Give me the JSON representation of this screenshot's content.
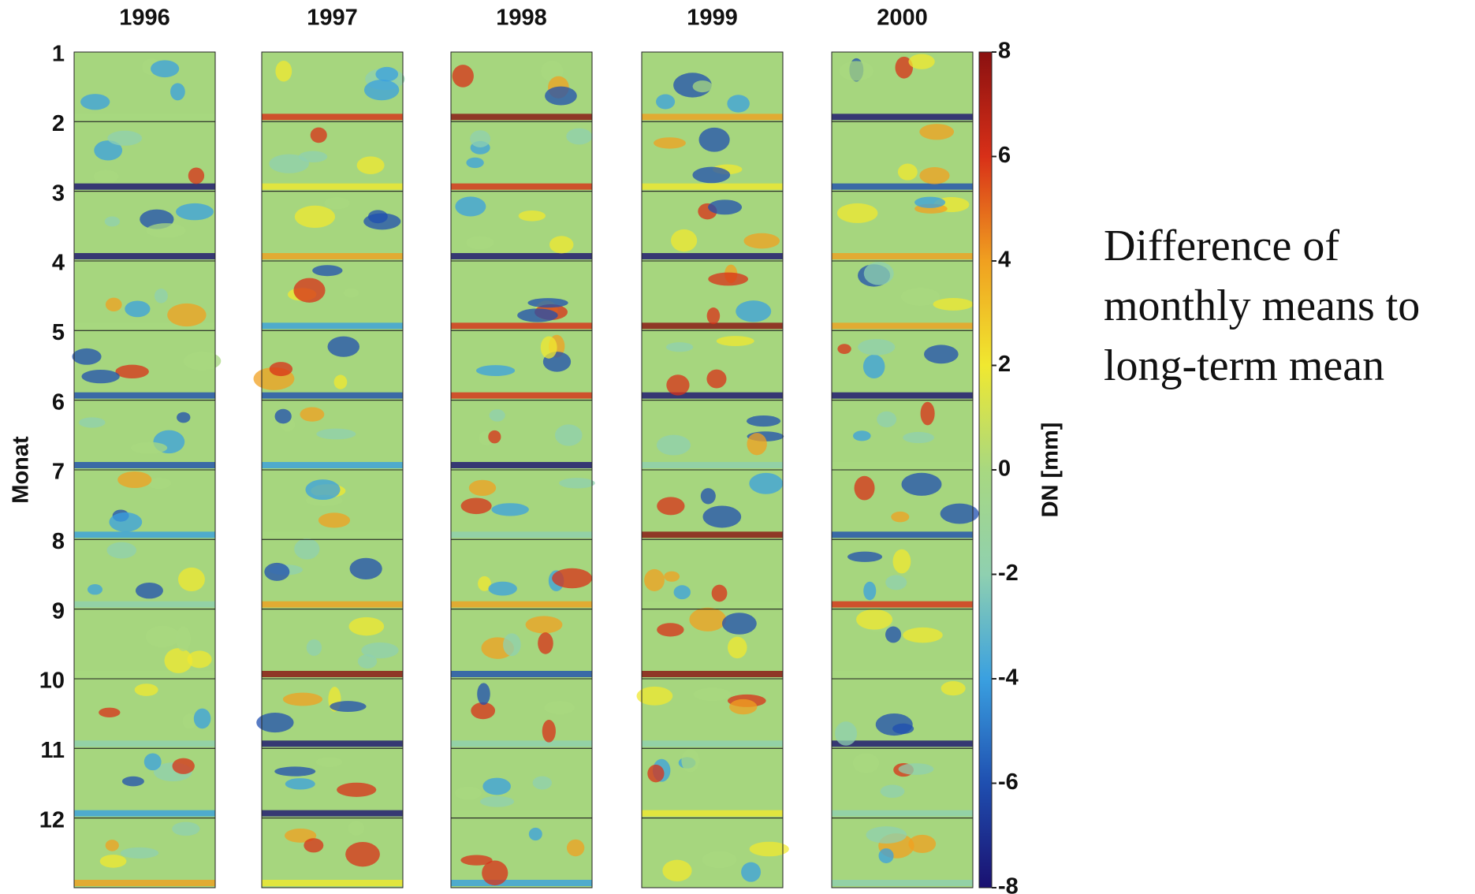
{
  "chart_data": {
    "type": "map-grid",
    "columns": [
      "1996",
      "1997",
      "1998",
      "1999",
      "2000"
    ],
    "rows": [
      "1",
      "2",
      "3",
      "4",
      "5",
      "6",
      "7",
      "8",
      "9",
      "10",
      "11",
      "12"
    ],
    "ylabel": "Monat",
    "colorbar": {
      "label": "DN [mm]",
      "lim": [
        -8,
        8
      ],
      "ticks": [
        8,
        6,
        4,
        2,
        0,
        -2,
        -4,
        -6,
        -8
      ],
      "colors": [
        "#1a1070",
        "#1f4fb0",
        "#3aa0e0",
        "#8fd0b0",
        "#a8d880",
        "#f0e830",
        "#f0a020",
        "#d83018",
        "#8a1010"
      ]
    },
    "annotation": [
      "Difference of",
      "monthly means to",
      "long-term mean"
    ]
  }
}
